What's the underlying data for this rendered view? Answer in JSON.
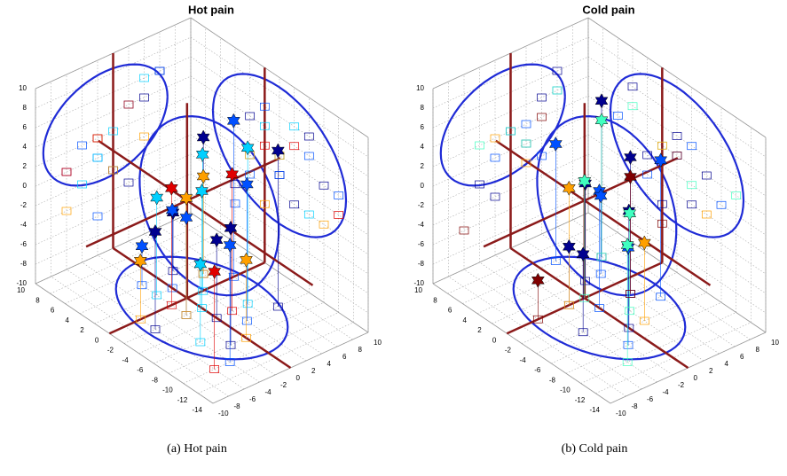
{
  "chart_data": [
    {
      "type": "scatter3d",
      "title": "Hot pain",
      "caption": "(a) Hot pain",
      "xlim": [
        -14,
        10
      ],
      "xticks": [
        -14,
        -12,
        -10,
        -8,
        -6,
        -4,
        -2,
        0,
        2,
        4,
        6,
        8,
        10
      ],
      "ylim": [
        -10,
        10
      ],
      "yticks": [
        -10,
        -8,
        -6,
        -4,
        -2,
        0,
        2,
        4,
        6,
        8,
        10
      ],
      "zlim": [
        -10,
        10
      ],
      "zticks": [
        -10,
        -8,
        -6,
        -4,
        -2,
        0,
        2,
        4,
        6,
        8,
        10
      ],
      "grid": true,
      "series": [
        {
          "color": "#00008f",
          "x": [
            -8,
            -4,
            2,
            -2,
            4,
            -6
          ],
          "y": [
            -2,
            0,
            4,
            -6,
            2,
            6
          ],
          "z": [
            2,
            -2,
            4,
            0,
            -4,
            6
          ]
        },
        {
          "color": "#0050ff",
          "x": [
            -6,
            -2,
            0,
            2,
            -10,
            4
          ],
          "y": [
            2,
            -2,
            6,
            0,
            -4,
            -2
          ],
          "z": [
            4,
            0,
            6,
            -2,
            2,
            -6
          ]
        },
        {
          "color": "#00d0ff",
          "x": [
            -4,
            0,
            -2,
            2,
            -6
          ],
          "y": [
            4,
            2,
            0,
            -2,
            -4
          ],
          "z": [
            6,
            4,
            2,
            0,
            -2
          ]
        },
        {
          "color": "#ffa000",
          "x": [
            -2,
            2,
            -8,
            0
          ],
          "y": [
            -2,
            4,
            0,
            -6
          ],
          "z": [
            2,
            0,
            -2,
            -4
          ]
        },
        {
          "color": "#e00000",
          "x": [
            -4,
            0,
            -10
          ],
          "y": [
            2,
            -2,
            -6
          ],
          "z": [
            4,
            2,
            0
          ]
        }
      ]
    },
    {
      "type": "scatter3d",
      "title": "Cold pain",
      "caption": "(b) Cold pain",
      "xlim": [
        -14,
        10
      ],
      "xticks": [
        -14,
        -12,
        -10,
        -8,
        -6,
        -4,
        -2,
        0,
        2,
        4,
        6,
        8,
        10
      ],
      "ylim": [
        -10,
        10
      ],
      "yticks": [
        -10,
        -8,
        -6,
        -4,
        -2,
        0,
        2,
        4,
        6,
        8,
        10
      ],
      "zlim": [
        -10,
        10
      ],
      "zticks": [
        -10,
        -8,
        -6,
        -4,
        -2,
        0,
        2,
        4,
        6,
        8,
        10
      ],
      "grid": true,
      "series": [
        {
          "color": "#00008f",
          "x": [
            -6,
            -2,
            2,
            -4,
            0,
            4
          ],
          "y": [
            0,
            4,
            2,
            -4,
            -2,
            6
          ],
          "z": [
            2,
            4,
            0,
            -2,
            -4,
            6
          ]
        },
        {
          "color": "#0050ff",
          "x": [
            -8,
            -2,
            2,
            6,
            -4
          ],
          "y": [
            -2,
            0,
            4,
            2,
            6
          ],
          "z": [
            0,
            2,
            -2,
            2,
            4
          ]
        },
        {
          "color": "#40ffc0",
          "x": [
            -10,
            -4,
            4,
            0
          ],
          "y": [
            -4,
            2,
            6,
            0
          ],
          "z": [
            2,
            0,
            4,
            2
          ]
        },
        {
          "color": "#ffa000",
          "x": [
            -6,
            0
          ],
          "y": [
            2,
            -2
          ],
          "z": [
            -2,
            2
          ]
        },
        {
          "color": "#800000",
          "x": [
            0,
            -2
          ],
          "y": [
            -6,
            4
          ],
          "z": [
            -6,
            2
          ]
        }
      ]
    }
  ]
}
